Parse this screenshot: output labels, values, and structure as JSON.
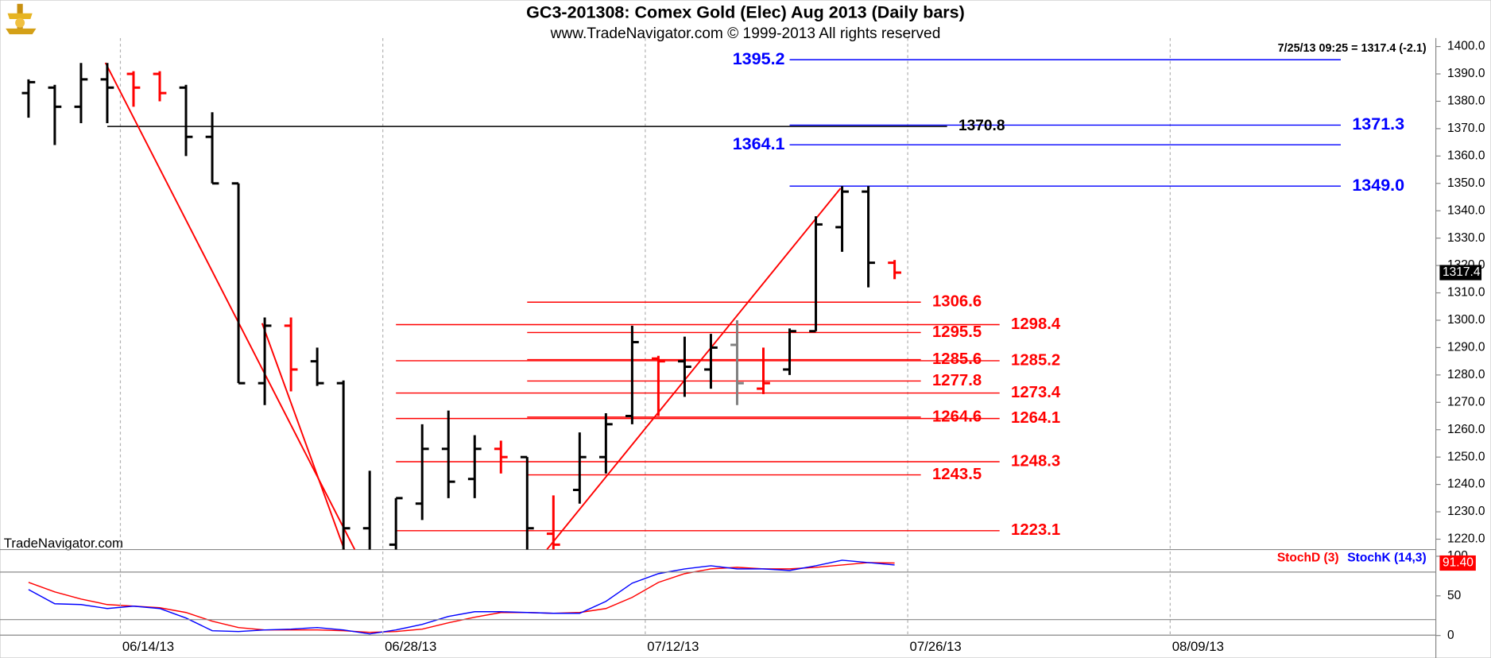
{
  "chart_data": [
    {
      "type": "ohlc",
      "title": "GC3-201308:  Comex Gold (Elec) Aug 2013  (Daily bars)",
      "subtitle": "www.TradeNavigator.com © 1999-2013 All rights reserved",
      "info": "7/25/13 09:25 = 1317.4 (-2.1)",
      "watermark": "TradeNavigator.com",
      "categories": [
        null,
        null,
        null,
        null,
        "06/14/13",
        null,
        null,
        null,
        null,
        null,
        null,
        null,
        null,
        null,
        "06/28/13",
        null,
        null,
        null,
        null,
        null,
        null,
        null,
        null,
        null,
        "07/12/13",
        null,
        null,
        null,
        null,
        null,
        null,
        null,
        null,
        null,
        "07/26/13",
        null,
        null,
        null,
        null,
        null,
        null,
        null,
        null,
        null,
        "08/09/13"
      ],
      "open": [
        1383,
        1385,
        1378,
        1388,
        1390,
        1390,
        1385,
        1367,
        1350,
        1277,
        1298,
        1285,
        1277,
        1224,
        1218,
        1233,
        1253,
        1242,
        1253,
        1250,
        1222,
        1238,
        1250,
        1265,
        1286,
        1285,
        1282,
        1291,
        1275,
        1282,
        1296,
        1334,
        1347,
        1321,
        null,
        null,
        null,
        null,
        null,
        null,
        null,
        null,
        null,
        null,
        null
      ],
      "high": [
        1388,
        1386,
        1394,
        1394,
        1391,
        1391,
        1386,
        1376,
        1350,
        1301,
        1301,
        1290,
        1278,
        1245,
        1235,
        1262,
        1267,
        1258,
        1256,
        1250,
        1236,
        1259,
        1266,
        1298,
        1287,
        1294,
        1295,
        1300,
        1290,
        1297,
        1338,
        1349,
        1349,
        1322,
        null,
        null,
        null,
        null,
        null,
        null,
        null,
        null,
        null,
        null,
        null
      ],
      "low": [
        1374,
        1364,
        1372,
        1372,
        1378,
        1380,
        1360,
        1350,
        1277,
        1269,
        1274,
        1276,
        1212,
        1212,
        1215,
        1227,
        1235,
        1235,
        1244,
        1212,
        1215,
        1233,
        1244,
        1262,
        1265,
        1272,
        1275,
        1269,
        1273,
        1280,
        1296,
        1325,
        1312,
        1315,
        null,
        null,
        null,
        null,
        null,
        null,
        null,
        null,
        null,
        null,
        null
      ],
      "close": [
        1387,
        1378,
        1388,
        1385,
        1385,
        1383,
        1367,
        1350,
        1277,
        1298,
        1282,
        1277,
        1224,
        1213,
        1235,
        1253,
        1241,
        1253,
        1250,
        1224,
        1218,
        1250,
        1262,
        1292,
        1285,
        1283,
        1290,
        1277,
        1277,
        1296,
        1335,
        1347,
        1321,
        1317.4,
        null,
        null,
        null,
        null,
        null,
        null,
        null,
        null,
        null,
        null,
        null
      ],
      "colors": [
        "#000000",
        "#000000",
        "#000000",
        "#000000",
        "#ff0000",
        "#ff0000",
        "#000000",
        "#000000",
        "#000000",
        "#000000",
        "#ff0000",
        "#000000",
        "#000000",
        "#000000",
        "#000000",
        "#000000",
        "#000000",
        "#000000",
        "#ff0000",
        "#000000",
        "#ff0000",
        "#000000",
        "#000000",
        "#000000",
        "#ff0000",
        "#000000",
        "#000000",
        "#808080",
        "#ff0000",
        "#000000",
        "#000000",
        "#000000",
        "#000000",
        "#ff0000",
        null,
        null,
        null,
        null,
        null,
        null,
        null,
        null,
        null,
        null,
        null
      ],
      "ylim": [
        1216.2,
        1403.1
      ],
      "yticks": [
        {
          "value": 1220,
          "label": "1220.0"
        },
        {
          "value": 1230,
          "label": "1230.0"
        },
        {
          "value": 1240,
          "label": "1240.0"
        },
        {
          "value": 1250,
          "label": "1250.0"
        },
        {
          "value": 1260,
          "label": "1260.0"
        },
        {
          "value": 1270,
          "label": "1270.0"
        },
        {
          "value": 1280,
          "label": "1280.0"
        },
        {
          "value": 1290,
          "label": "1290.0"
        },
        {
          "value": 1300,
          "label": "1300.0"
        },
        {
          "value": 1310,
          "label": "1310.0"
        },
        {
          "value": 1320,
          "label": "1320.0"
        },
        {
          "value": 1330,
          "label": "1330.0"
        },
        {
          "value": 1340,
          "label": "1340.0"
        },
        {
          "value": 1350,
          "label": "1350.0"
        },
        {
          "value": 1360,
          "label": "1360.0"
        },
        {
          "value": 1370,
          "label": "1370.0"
        },
        {
          "value": 1380,
          "label": "1380.0"
        },
        {
          "value": 1390,
          "label": "1390.0"
        },
        {
          "value": 1400,
          "label": "1400.0"
        }
      ],
      "levels": [
        {
          "value": 1395.2,
          "color": "#0000ff",
          "from": 29,
          "to": 50,
          "label_at": "start"
        },
        {
          "value": 1364.1,
          "color": "#0000ff",
          "from": 29,
          "to": 50,
          "label_at": "start"
        },
        {
          "value": 1371.3,
          "color": "#0000ff",
          "from": 29,
          "to": 50,
          "label_at": "end"
        },
        {
          "value": 1349,
          "label": "1349.0",
          "color": "#0000ff",
          "from": 29,
          "to": 50,
          "label_at": "end"
        },
        {
          "value": 1370.8,
          "color": "#000000",
          "from": 3,
          "to": 35,
          "label_at": "end"
        },
        {
          "value": 1306.6,
          "color": "#ff0000",
          "from": 19,
          "to": 34,
          "label_at": "end"
        },
        {
          "value": 1295.5,
          "color": "#ff0000",
          "from": 19,
          "to": 34,
          "label_at": "end"
        },
        {
          "value": 1285.6,
          "color": "#ff0000",
          "from": 19,
          "to": 34,
          "label_at": "end"
        },
        {
          "value": 1277.8,
          "color": "#ff0000",
          "from": 19,
          "to": 34,
          "label_at": "end"
        },
        {
          "value": 1264.6,
          "color": "#ff0000",
          "from": 19,
          "to": 34,
          "label_at": "end"
        },
        {
          "value": 1243.5,
          "color": "#ff0000",
          "from": 19,
          "to": 34,
          "label_at": "end"
        },
        {
          "value": 1298.4,
          "color": "#ff0000",
          "from": 14,
          "to": 37,
          "label_at": "end"
        },
        {
          "value": 1285.2,
          "color": "#ff0000",
          "from": 14,
          "to": 37,
          "label_at": "end"
        },
        {
          "value": 1273.4,
          "color": "#ff0000",
          "from": 14,
          "to": 37,
          "label_at": "end"
        },
        {
          "value": 1264.1,
          "color": "#ff0000",
          "from": 14,
          "to": 37,
          "label_at": "end"
        },
        {
          "value": 1248.3,
          "color": "#ff0000",
          "from": 14,
          "to": 37,
          "label_at": "end"
        },
        {
          "value": 1223.1,
          "color": "#ff0000",
          "from": 14,
          "to": 37,
          "label_at": "end"
        }
      ],
      "trendlines": [
        {
          "x1": 2.93,
          "y1": 1394.1,
          "x2": 12.43,
          "y2": 1216.2,
          "color": "#ff0000"
        },
        {
          "x1": 8.9,
          "y1": 1298.9,
          "x2": 12.03,
          "y2": 1216.2,
          "color": "#ff0000"
        },
        {
          "x1": 19.75,
          "y1": 1216.2,
          "x2": 30.94,
          "y2": 1348.2,
          "color": "#ff0000"
        }
      ]
    },
    {
      "type": "line",
      "series": [
        {
          "name": "StochD (3)",
          "color": "#ff0000",
          "last_label": "91.40",
          "values": [
            67,
            55,
            46,
            39,
            37,
            35,
            29,
            18,
            10,
            7,
            7,
            7,
            6,
            4,
            5,
            8,
            16,
            23,
            29,
            29,
            28,
            29,
            34,
            48,
            67,
            78,
            84,
            86,
            84,
            84,
            86,
            89,
            92,
            91.4,
            null,
            null,
            null,
            null,
            null,
            null,
            null,
            null,
            null,
            null,
            null
          ]
        },
        {
          "name": "StochK (14,3)",
          "color": "#0000ff",
          "values": [
            58,
            40,
            39,
            34,
            37,
            34,
            22,
            6,
            5,
            7,
            8,
            10,
            7,
            2,
            7,
            14,
            24,
            30,
            30,
            29,
            28,
            28,
            43,
            66,
            78,
            84,
            88,
            84,
            84,
            82,
            88,
            95,
            92,
            89,
            null,
            null,
            null,
            null,
            null,
            null,
            null,
            null,
            null,
            null,
            null
          ]
        }
      ],
      "ylim": [
        -26,
        106
      ],
      "yticks": [
        0,
        50,
        100
      ],
      "bands": [
        20,
        80
      ]
    }
  ]
}
